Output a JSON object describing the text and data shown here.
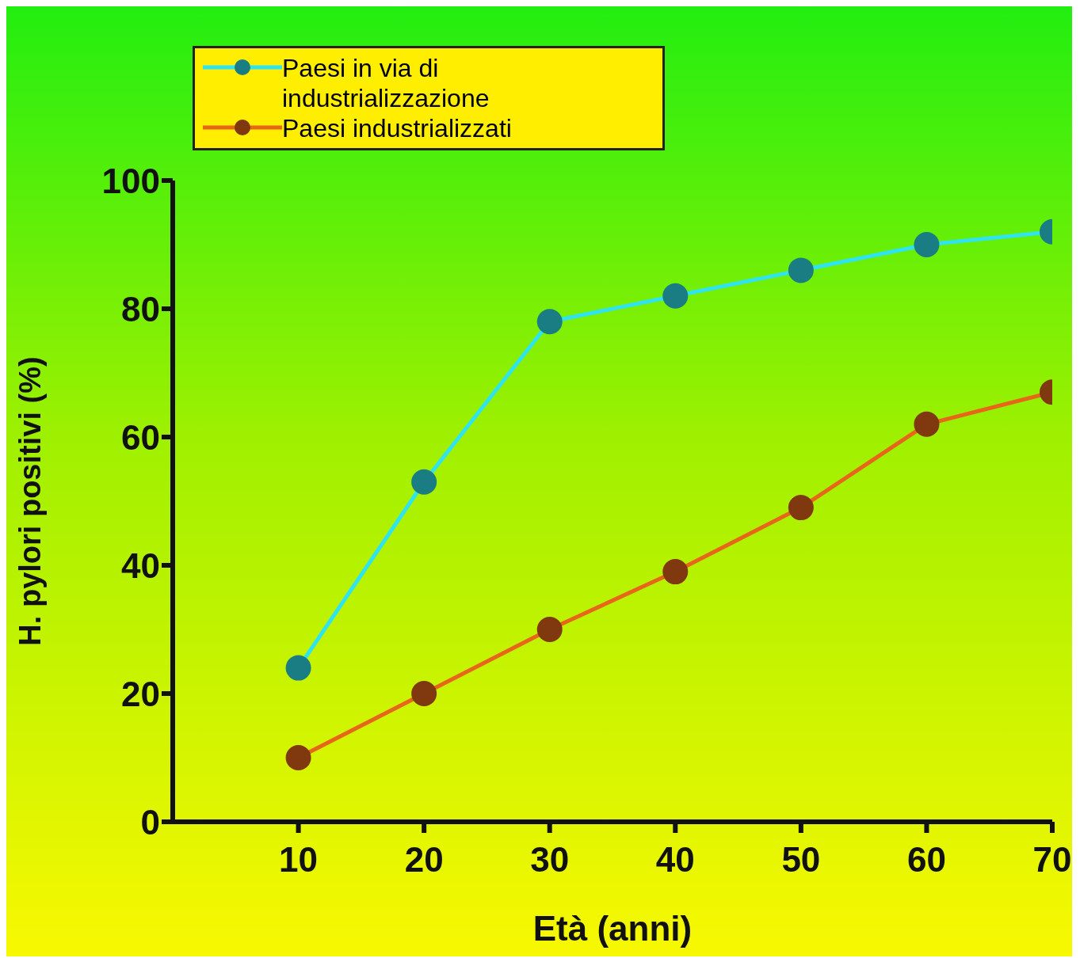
{
  "chart_data": {
    "type": "line",
    "xlabel": "Età (anni)",
    "ylabel": "H. pylori positivi (%)",
    "x": [
      10,
      20,
      30,
      40,
      50,
      60,
      70
    ],
    "series": [
      {
        "name": "Paesi in via di industrializzazione",
        "color": "#2fe4ef",
        "values": [
          24,
          53,
          78,
          82,
          86,
          90,
          92
        ]
      },
      {
        "name": "Paesi industrializzati",
        "color": "#e8661a",
        "values": [
          10,
          20,
          30,
          39,
          49,
          62,
          67
        ]
      }
    ],
    "xlim": [
      0,
      70
    ],
    "xticks": [
      10,
      20,
      30,
      40,
      50,
      60,
      70
    ],
    "ylim": [
      0,
      100
    ],
    "yticks": [
      0,
      20,
      40,
      60,
      80,
      100
    ],
    "grid": false,
    "legend": "top left",
    "marker": "circle",
    "line_style": "solid"
  }
}
